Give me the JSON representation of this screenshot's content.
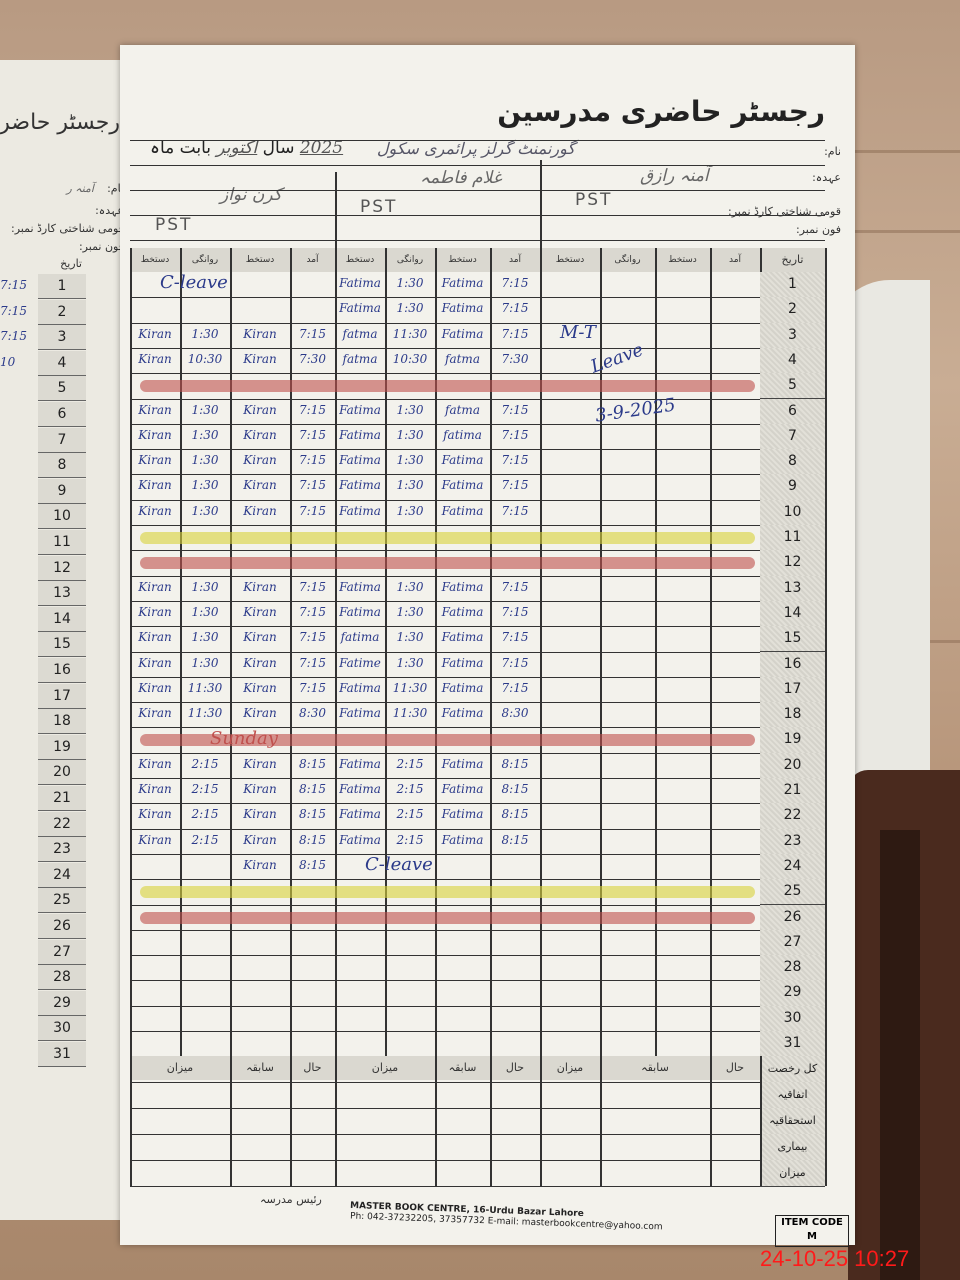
{
  "register": {
    "title": "رجسٹر حاضری مدرسین",
    "school": "گورنمنٹ گرلز پرائمری سکول",
    "month_prefix": "بابت ماہ",
    "month": "اکتوبر",
    "year_label": "سال",
    "year": "2025",
    "labels": {
      "name": "نام:",
      "designation": "عہدہ:",
      "cnic": "قومی شناختی کارڈ نمبر:",
      "phone": "فون نمبر:",
      "date": "تاریخ"
    },
    "column_headers": {
      "arrival": "آمد",
      "signature": "دستخط",
      "departure": "روانگی"
    },
    "teachers": [
      {
        "name": "آمنہ رازق",
        "designation": "PST"
      },
      {
        "name": "غلام فاطمہ",
        "designation": "PST"
      },
      {
        "name": "کرن نواز",
        "designation": "PST"
      }
    ]
  },
  "attendance": [
    {
      "date": "1",
      "t2": {
        "arrival": "7:15",
        "arrival_sign": "Fatima",
        "departure": "1:30",
        "departure_sign": "Fatima"
      },
      "t3_note": "C-leave"
    },
    {
      "date": "2",
      "t2": {
        "arrival": "7:15",
        "arrival_sign": "Fatima",
        "departure": "1:30",
        "departure_sign": "Fatima"
      }
    },
    {
      "date": "3",
      "t2": {
        "arrival": "7:15",
        "arrival_sign": "Fatima",
        "departure": "11:30",
        "departure_sign": "fatma"
      },
      "t3": {
        "arrival": "7:15",
        "arrival_sign": "Kiran",
        "departure": "1:30",
        "departure_sign": "Kiran"
      }
    },
    {
      "date": "4",
      "t2": {
        "arrival": "7:30",
        "arrival_sign": "fatma",
        "departure": "10:30",
        "departure_sign": "fatma"
      },
      "t3": {
        "arrival": "7:30",
        "arrival_sign": "Kiran",
        "departure": "10:30",
        "departure_sign": "Kiran"
      }
    },
    {
      "date": "5",
      "mark": "sunday"
    },
    {
      "date": "6",
      "t2": {
        "arrival": "7:15",
        "arrival_sign": "fatma",
        "departure": "1:30",
        "departure_sign": "Fatima"
      },
      "t3": {
        "arrival": "7:15",
        "arrival_sign": "Kiran",
        "departure": "1:30",
        "departure_sign": "Kiran"
      }
    },
    {
      "date": "7",
      "t2": {
        "arrival": "7:15",
        "arrival_sign": "fatima",
        "departure": "1:30",
        "departure_sign": "Fatima"
      },
      "t3": {
        "arrival": "7:15",
        "arrival_sign": "Kiran",
        "departure": "1:30",
        "departure_sign": "Kiran"
      }
    },
    {
      "date": "8",
      "t2": {
        "arrival": "7:15",
        "arrival_sign": "Fatima",
        "departure": "1:30",
        "departure_sign": "Fatima"
      },
      "t3": {
        "arrival": "7:15",
        "arrival_sign": "Kiran",
        "departure": "1:30",
        "departure_sign": "Kiran"
      }
    },
    {
      "date": "9",
      "t2": {
        "arrival": "7:15",
        "arrival_sign": "Fatima",
        "departure": "1:30",
        "departure_sign": "Fatima"
      },
      "t3": {
        "arrival": "7:15",
        "arrival_sign": "Kiran",
        "departure": "1:30",
        "departure_sign": "Kiran"
      }
    },
    {
      "date": "10",
      "t2": {
        "arrival": "7:15",
        "arrival_sign": "Fatima",
        "departure": "1:30",
        "departure_sign": "Fatima"
      },
      "t3": {
        "arrival": "7:15",
        "arrival_sign": "Kiran",
        "departure": "1:30",
        "departure_sign": "Kiran"
      }
    },
    {
      "date": "11",
      "mark": "saturday"
    },
    {
      "date": "12",
      "mark": "sunday"
    },
    {
      "date": "13",
      "t2": {
        "arrival": "7:15",
        "arrival_sign": "Fatima",
        "departure": "1:30",
        "departure_sign": "Fatima"
      },
      "t3": {
        "arrival": "7:15",
        "arrival_sign": "Kiran",
        "departure": "1:30",
        "departure_sign": "Kiran"
      }
    },
    {
      "date": "14",
      "t2": {
        "arrival": "7:15",
        "arrival_sign": "Fatima",
        "departure": "1:30",
        "departure_sign": "Fatima"
      },
      "t3": {
        "arrival": "7:15",
        "arrival_sign": "Kiran",
        "departure": "1:30",
        "departure_sign": "Kiran"
      }
    },
    {
      "date": "15",
      "t2": {
        "arrival": "7:15",
        "arrival_sign": "Fatima",
        "departure": "1:30",
        "departure_sign": "fatima"
      },
      "t3": {
        "arrival": "7:15",
        "arrival_sign": "Kiran",
        "departure": "1:30",
        "departure_sign": "Kiran"
      }
    },
    {
      "date": "16",
      "t2": {
        "arrival": "7:15",
        "arrival_sign": "Fatima",
        "departure": "1:30",
        "departure_sign": "Fatime"
      },
      "t3": {
        "arrival": "7:15",
        "arrival_sign": "Kiran",
        "departure": "1:30",
        "departure_sign": "Kiran"
      }
    },
    {
      "date": "17",
      "t2": {
        "arrival": "7:15",
        "arrival_sign": "Fatima",
        "departure": "11:30",
        "departure_sign": "Fatima"
      },
      "t3": {
        "arrival": "7:15",
        "arrival_sign": "Kiran",
        "departure": "11:30",
        "departure_sign": "Kiran"
      }
    },
    {
      "date": "18",
      "t2": {
        "arrival": "8:30",
        "arrival_sign": "Fatima",
        "departure": "11:30",
        "departure_sign": "Fatima"
      },
      "t3": {
        "arrival": "8:30",
        "arrival_sign": "Kiran",
        "departure": "11:30",
        "departure_sign": "Kiran"
      }
    },
    {
      "date": "19",
      "mark": "sunday",
      "row_note": "Sunday"
    },
    {
      "date": "20",
      "t2": {
        "arrival": "8:15",
        "arrival_sign": "Fatima",
        "departure": "2:15",
        "departure_sign": "Fatima"
      },
      "t3": {
        "arrival": "8:15",
        "arrival_sign": "Kiran",
        "departure": "2:15",
        "departure_sign": "Kiran"
      }
    },
    {
      "date": "21",
      "t2": {
        "arrival": "8:15",
        "arrival_sign": "Fatima",
        "departure": "2:15",
        "departure_sign": "Fatima"
      },
      "t3": {
        "arrival": "8:15",
        "arrival_sign": "Kiran",
        "departure": "2:15",
        "departure_sign": "Kiran"
      }
    },
    {
      "date": "22",
      "t2": {
        "arrival": "8:15",
        "arrival_sign": "Fatima",
        "departure": "2:15",
        "departure_sign": "Fatima"
      },
      "t3": {
        "arrival": "8:15",
        "arrival_sign": "Kiran",
        "departure": "2:15",
        "departure_sign": "Kiran"
      }
    },
    {
      "date": "23",
      "t2": {
        "arrival": "8:15",
        "arrival_sign": "Fatima",
        "departure": "2:15",
        "departure_sign": "Fatima"
      },
      "t3": {
        "arrival": "8:15",
        "arrival_sign": "Kiran",
        "departure": "2:15",
        "departure_sign": "Kiran"
      }
    },
    {
      "date": "24",
      "t2_note": "C-leave",
      "t3": {
        "arrival": "8:15",
        "arrival_sign": "Kiran",
        "departure": "",
        "departure_sign": ""
      }
    },
    {
      "date": "25",
      "mark": "saturday"
    },
    {
      "date": "26",
      "mark": "sunday"
    },
    {
      "date": "27"
    },
    {
      "date": "28"
    },
    {
      "date": "29"
    },
    {
      "date": "30"
    },
    {
      "date": "31"
    }
  ],
  "t1_leave_note": {
    "line1": "M-T",
    "line2": "Leave",
    "date": "3-9-2025"
  },
  "mark_colors": {
    "sunday": "#c0504d",
    "saturday": "#d9d23a",
    "ink": "#2b3a8a"
  },
  "summary": {
    "column_headers": [
      "حال",
      "سابقہ",
      "میزان"
    ],
    "row_labels": [
      "کل رخصت",
      "اتفاقیہ",
      "استحقاقیہ",
      "بیماری",
      "میزان"
    ]
  },
  "footer": {
    "principal": "رئیس مدرسہ",
    "publisher": "MASTER BOOK CENTRE, 16-Urdu Bazar Lahore",
    "contact": "Ph: 042-37232205, 37357732 E-mail: masterbookcentre@yahoo.com",
    "item_code_label": "ITEM CODE",
    "item_code": "M"
  },
  "left_page": {
    "title": "رجسٹر حاضر",
    "name_value": "آمنہ ر",
    "times": [
      "7:15",
      "7:15",
      "7:15",
      "10"
    ]
  },
  "camera_timestamp": "24-10-25  10:27"
}
